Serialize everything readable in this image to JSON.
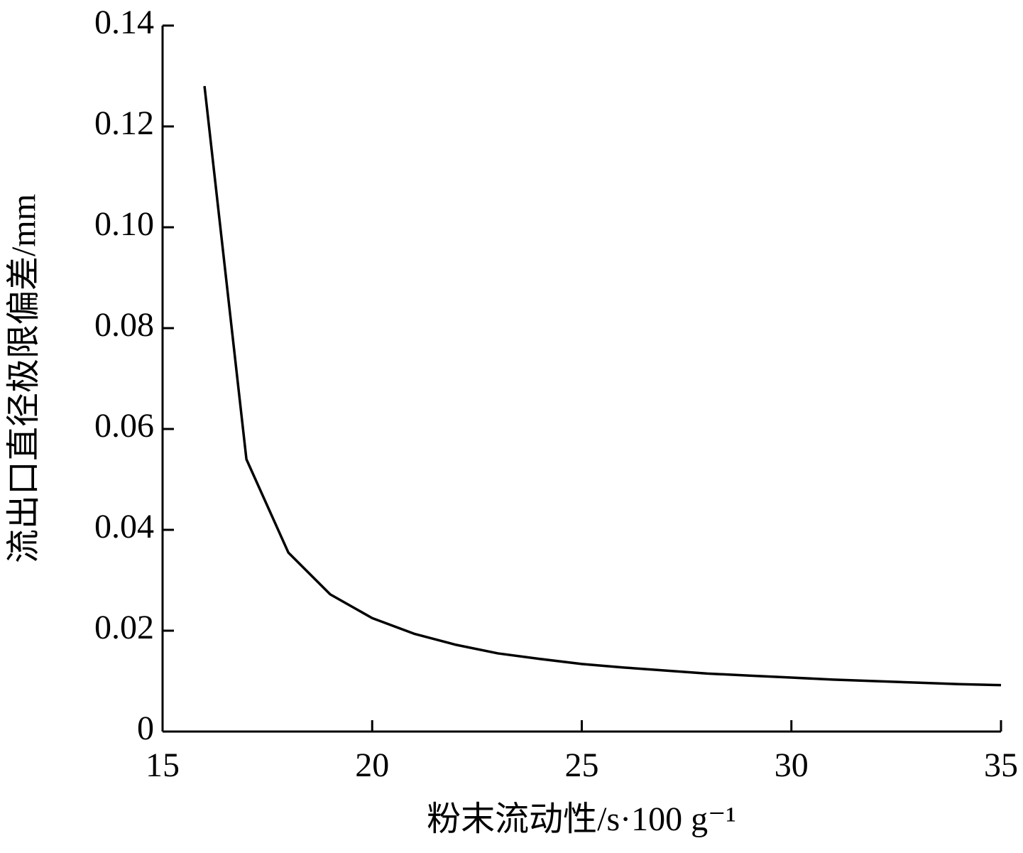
{
  "chart_data": {
    "type": "line",
    "x_label": "粉末流动性/s·100 g⁻¹",
    "y_label": "流出口直径极限偏差/mm",
    "x": [
      16,
      17,
      18,
      19,
      20,
      21,
      22,
      23,
      24,
      25,
      26,
      27,
      28,
      29,
      30,
      31,
      32,
      33,
      34,
      35
    ],
    "series": [
      {
        "color": "#000000",
        "values": [
          0.128,
          0.054,
          0.0355,
          0.0272,
          0.0225,
          0.0194,
          0.0172,
          0.0155,
          0.0144,
          0.0134,
          0.0127,
          0.0121,
          0.0115,
          0.0111,
          0.0107,
          0.0103,
          0.01,
          0.0097,
          0.0094,
          0.0092
        ]
      }
    ],
    "xlim": [
      15,
      35
    ],
    "xticks": [
      15,
      20,
      25,
      30,
      35
    ],
    "ylim": [
      0,
      0.14
    ],
    "yticks": [
      0,
      0.02,
      0.04,
      0.06,
      0.08,
      {
        "value": 0.1,
        "label": "0.10"
      },
      0.12,
      0.14
    ],
    "grid": false
  }
}
